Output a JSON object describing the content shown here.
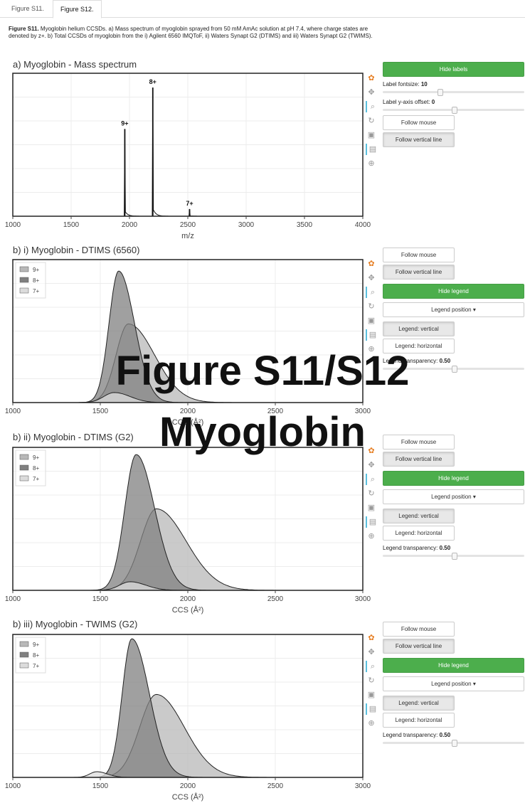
{
  "tabs": [
    "Figure S11.",
    "Figure S12."
  ],
  "caption": {
    "bold": "Figure S11.",
    "text": " Myoglobin helium CCSDs. a) Mass spectrum of myoglobin sprayed from 50 mM AmAc solution at pH 7.4, where charge states are denoted by z+. b) Total CCSDs of myoglobin from the i) Agilent 6560 IMQToF, ii) Waters Synapt G2 (DTIMS) and iii) Waters Synapt G2 (TWIMS)."
  },
  "overlay": {
    "line1": "Figure S11/S12",
    "line2": "Myoglobin"
  },
  "toolbar_icons": [
    "color-wheel-icon",
    "pan-icon",
    "zoom-icon",
    "reset-icon",
    "save-icon",
    "hover-icon",
    "crosshair-icon"
  ],
  "colors": {
    "green": "#4cae4c",
    "s9": "#b8b8b8",
    "s8": "#808080",
    "s7": "#dcdcdc"
  },
  "panel_a": {
    "hide_labels": "Hide labels",
    "label_fontsize": "Label fontsize:",
    "label_fontsize_value": "10",
    "label_fontsize_level": 0.4,
    "label_offset": "Label y-axis offset:",
    "label_offset_value": "0",
    "label_offset_level": 0.5,
    "follow_mouse": "Follow mouse",
    "follow_line": "Follow vertical line"
  },
  "panel_b": {
    "follow_mouse": "Follow mouse",
    "follow_line": "Follow vertical line",
    "hide_legend": "Hide legend",
    "legend_position": "Legend position ▾",
    "legend_vertical": "Legend: vertical",
    "legend_horizontal": "Legend: horizontal",
    "legend_transparency": "Legend transparency:",
    "legend_transparency_value": "0.50",
    "legend_transparency_level": 0.5
  },
  "chart_data": [
    {
      "type": "line",
      "title": "a) Myoglobin - Mass spectrum",
      "xlabel": "m/z",
      "xlim": [
        1000,
        4000
      ],
      "xticks": [
        1000,
        1500,
        2000,
        2500,
        3000,
        3500,
        4000
      ],
      "peaks": [
        {
          "label": "9+",
          "x": 1960,
          "y": 0.61
        },
        {
          "label": "8+",
          "x": 2200,
          "y": 0.9
        },
        {
          "label": "7+",
          "x": 2515,
          "y": 0.05
        }
      ]
    },
    {
      "type": "area",
      "title": "b) i) Myoglobin - DTIMS (6560)",
      "xlabel": "CCS (Å²)",
      "xlim": [
        1000,
        3000
      ],
      "xticks": [
        1000,
        1500,
        2000,
        2500,
        3000
      ],
      "legend": "top-left",
      "series": [
        {
          "name": "9+",
          "center": 1660,
          "sigmaL": 70,
          "sigmaR": 150,
          "amp": 0.55
        },
        {
          "name": "8+",
          "center": 1605,
          "sigmaL": 55,
          "sigmaR": 90,
          "amp": 0.92
        },
        {
          "name": "7+",
          "center": 1580,
          "sigmaL": 60,
          "sigmaR": 90,
          "amp": 0.07
        }
      ]
    },
    {
      "type": "area",
      "title": "b) ii) Myoglobin - DTIMS (G2)",
      "xlabel": "CCS (Å²)",
      "xlim": [
        1000,
        3000
      ],
      "xticks": [
        1000,
        1500,
        2000,
        2500,
        3000
      ],
      "legend": "top-left",
      "series": [
        {
          "name": "9+",
          "center": 1820,
          "sigmaL": 90,
          "sigmaR": 170,
          "amp": 0.57
        },
        {
          "name": "8+",
          "center": 1705,
          "sigmaL": 65,
          "sigmaR": 105,
          "amp": 0.95
        },
        {
          "name": "7+",
          "center": 1670,
          "sigmaL": 60,
          "sigmaR": 90,
          "amp": 0.06
        }
      ]
    },
    {
      "type": "area",
      "title": "b) iii) Myoglobin - TWIMS (G2)",
      "xlabel": "CCS (Å²)",
      "xlim": [
        1000,
        3000
      ],
      "xticks": [
        1000,
        1500,
        2000,
        2500,
        3000
      ],
      "legend": "top-left",
      "series": [
        {
          "name": "9+",
          "center": 1820,
          "sigmaL": 95,
          "sigmaR": 160,
          "amp": 0.58
        },
        {
          "name": "8+",
          "center": 1680,
          "sigmaL": 55,
          "sigmaR": 100,
          "amp": 0.97
        },
        {
          "name": "7+",
          "center": 1480,
          "sigmaL": 40,
          "sigmaR": 60,
          "amp": 0.04
        }
      ]
    }
  ]
}
